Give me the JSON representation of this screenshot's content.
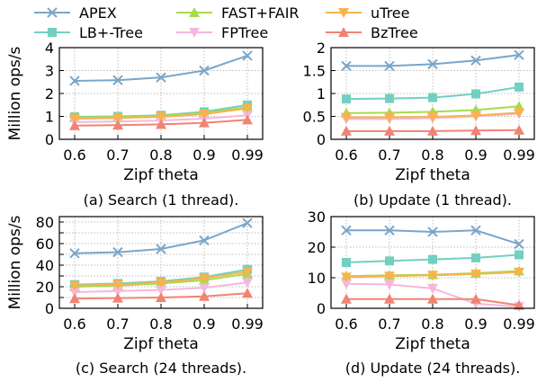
{
  "legend": [
    {
      "name": "APEX",
      "color": "#7aa6c9",
      "marker": "x"
    },
    {
      "name": "LB+-Tree",
      "color": "#72d0c0",
      "marker": "square"
    },
    {
      "name": "FAST+FAIR",
      "color": "#a6dc4c",
      "marker": "triangle-up"
    },
    {
      "name": "FPTree",
      "color": "#f5b8dc",
      "marker": "triangle-down"
    },
    {
      "name": "uTree",
      "color": "#f8b24e",
      "marker": "triangle-down"
    },
    {
      "name": "BzTree",
      "color": "#f08474",
      "marker": "triangle-up"
    }
  ],
  "chart_data": [
    {
      "type": "line",
      "caption": "(a) Search (1 thread).",
      "xlabel": "Zipf theta",
      "ylabel": "Million ops/s",
      "x": [
        "0.6",
        "0.7",
        "0.8",
        "0.9",
        "0.99"
      ],
      "ylim": [
        0,
        4
      ],
      "yticks": [
        "0",
        "1",
        "2",
        "3",
        "4"
      ],
      "grid": true,
      "series": [
        {
          "name": "APEX",
          "values": [
            2.55,
            2.58,
            2.7,
            3.0,
            3.65
          ]
        },
        {
          "name": "LB+-Tree",
          "values": [
            0.98,
            1.0,
            1.05,
            1.2,
            1.5
          ]
        },
        {
          "name": "FAST+FAIR",
          "values": [
            0.95,
            0.97,
            1.02,
            1.15,
            1.4
          ]
        },
        {
          "name": "FPTree",
          "values": [
            0.75,
            0.78,
            0.82,
            0.9,
            1.05
          ]
        },
        {
          "name": "uTree",
          "values": [
            0.9,
            0.93,
            0.98,
            1.1,
            1.35
          ]
        },
        {
          "name": "BzTree",
          "values": [
            0.6,
            0.62,
            0.65,
            0.72,
            0.85
          ]
        }
      ]
    },
    {
      "type": "line",
      "caption": "(b) Update (1 thread).",
      "xlabel": "Zipf theta",
      "ylabel": "",
      "x": [
        "0.6",
        "0.7",
        "0.8",
        "0.9",
        "0.99"
      ],
      "ylim": [
        0,
        2
      ],
      "yticks": [
        "0",
        "0.5",
        "1",
        "1.5",
        "2"
      ],
      "grid": true,
      "series": [
        {
          "name": "APEX",
          "values": [
            1.6,
            1.6,
            1.64,
            1.72,
            1.84
          ]
        },
        {
          "name": "LB+-Tree",
          "values": [
            0.88,
            0.89,
            0.91,
            0.99,
            1.14
          ]
        },
        {
          "name": "FAST+FAIR",
          "values": [
            0.57,
            0.58,
            0.6,
            0.64,
            0.72
          ]
        },
        {
          "name": "FPTree",
          "values": [
            0.44,
            0.44,
            0.46,
            0.5,
            0.56
          ]
        },
        {
          "name": "uTree",
          "values": [
            0.48,
            0.48,
            0.49,
            0.52,
            0.58
          ]
        },
        {
          "name": "BzTree",
          "values": [
            0.18,
            0.18,
            0.18,
            0.19,
            0.2
          ]
        }
      ]
    },
    {
      "type": "line",
      "caption": "(c) Search (24 threads).",
      "xlabel": "Zipf theta",
      "ylabel": "Million ops/s",
      "x": [
        "0.6",
        "0.7",
        "0.8",
        "0.9",
        "0.99"
      ],
      "ylim": [
        0,
        85
      ],
      "yticks": [
        "0",
        "10",
        "20",
        "30",
        "40",
        "50",
        "60",
        "70",
        "80"
      ],
      "yticklabels": [
        "0",
        "",
        "20",
        "",
        "40",
        "",
        "60",
        "",
        "80"
      ],
      "grid": true,
      "series": [
        {
          "name": "APEX",
          "values": [
            51,
            52,
            55,
            63,
            79
          ]
        },
        {
          "name": "LB+-Tree",
          "values": [
            22,
            23,
            25,
            29,
            36
          ]
        },
        {
          "name": "FAST+FAIR",
          "values": [
            20,
            21,
            23,
            26,
            32
          ]
        },
        {
          "name": "FPTree",
          "values": [
            15,
            16,
            17,
            19,
            24
          ]
        },
        {
          "name": "uTree",
          "values": [
            21,
            22,
            24,
            28,
            34
          ]
        },
        {
          "name": "BzTree",
          "values": [
            9,
            9.5,
            10,
            11,
            14
          ]
        }
      ]
    },
    {
      "type": "line",
      "caption": "(d) Update (24 threads).",
      "xlabel": "Zipf theta",
      "ylabel": "",
      "x": [
        "0.6",
        "0.7",
        "0.8",
        "0.9",
        "0.99"
      ],
      "ylim": [
        0,
        30
      ],
      "yticks": [
        "0",
        "10",
        "20",
        "30"
      ],
      "grid": true,
      "series": [
        {
          "name": "APEX",
          "values": [
            25.5,
            25.5,
            25,
            25.5,
            21
          ]
        },
        {
          "name": "LB+-Tree",
          "values": [
            15,
            15.5,
            16,
            16.5,
            17.5
          ]
        },
        {
          "name": "FAST+FAIR",
          "values": [
            10.5,
            10.8,
            11,
            11.5,
            12.2
          ]
        },
        {
          "name": "FPTree",
          "values": [
            8,
            7.8,
            6.5,
            1.5,
            0.5
          ]
        },
        {
          "name": "uTree",
          "values": [
            10.2,
            10.5,
            10.8,
            11.2,
            11.8
          ]
        },
        {
          "name": "BzTree",
          "values": [
            3,
            3,
            3,
            3,
            1
          ]
        }
      ]
    }
  ]
}
